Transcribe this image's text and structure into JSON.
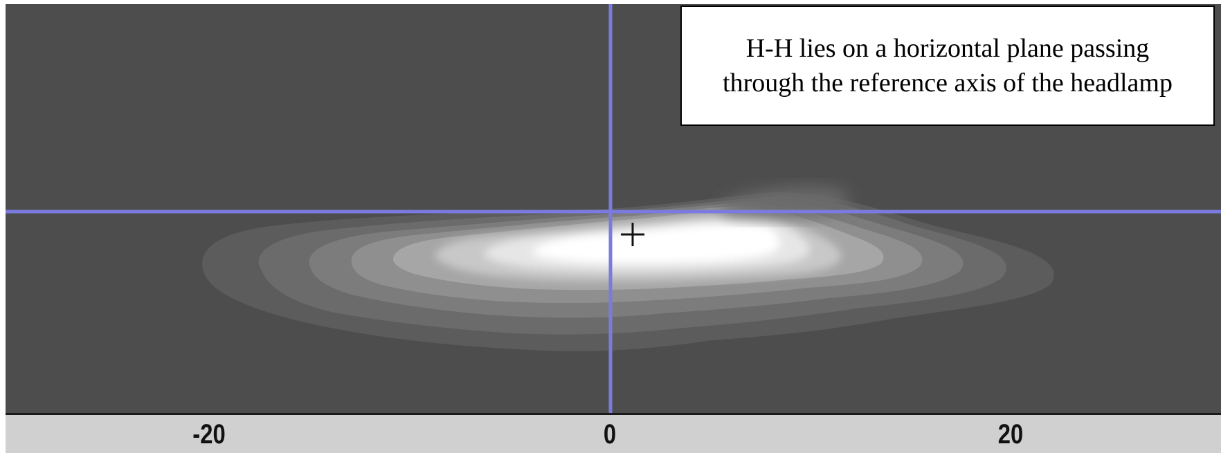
{
  "note": {
    "text": "H-H lies on a horizontal plane passing through the reference axis of the headlamp"
  },
  "axis": {
    "ticks": [
      {
        "label": "-20",
        "value": -20
      },
      {
        "label": "0",
        "value": 0
      },
      {
        "label": "20",
        "value": 20
      }
    ]
  },
  "guides": {
    "color": "#7b7bdf",
    "vertical_line_value": 0,
    "horizontal_line_value": 0
  },
  "colors": {
    "background": "#4d4d4d",
    "axis_strip": "#d0d0d0",
    "hotspot": "#ffffff"
  },
  "markers": {
    "cursor_icon": "crosshair-icon"
  }
}
